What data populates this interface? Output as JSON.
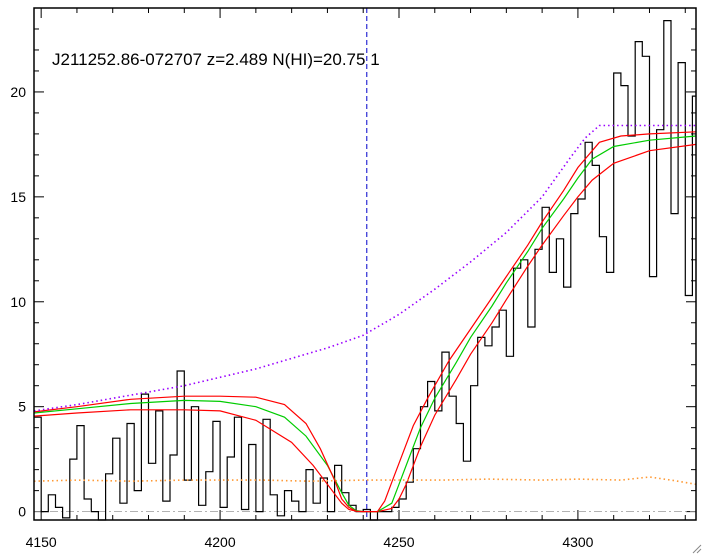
{
  "chart_data": {
    "type": "line",
    "title": "J211252.86-072707 z=2.489 N(HI)=20.75 1",
    "xlabel": "",
    "ylabel": "",
    "xlim": [
      4148,
      4333
    ],
    "ylim": [
      -0.4,
      24
    ],
    "x_ticks": [
      4150,
      4200,
      4250,
      4300
    ],
    "y_ticks": [
      0,
      5,
      10,
      15,
      20
    ],
    "grid": false,
    "legend": "none",
    "line_center": 4241,
    "flux_step": {
      "x": [
        4148,
        4150,
        4152,
        4154,
        4156,
        4158,
        4160,
        4162,
        4164,
        4166,
        4168,
        4170,
        4172,
        4174,
        4176,
        4178,
        4180,
        4182,
        4184,
        4186,
        4188,
        4190,
        4192,
        4194,
        4196,
        4198,
        4200,
        4202,
        4204,
        4206,
        4208,
        4210,
        4212,
        4214,
        4216,
        4218,
        4220,
        4222,
        4224,
        4226,
        4228,
        4230,
        4232,
        4234,
        4236,
        4238,
        4240,
        4242,
        4244,
        4246,
        4248,
        4250,
        4252,
        4254,
        4256,
        4258,
        4260,
        4262,
        4264,
        4266,
        4268,
        4270,
        4272,
        4274,
        4276,
        4278,
        4280,
        4282,
        4284,
        4286,
        4288,
        4290,
        4292,
        4294,
        4296,
        4298,
        4300,
        4302,
        4304,
        4306,
        4308,
        4310,
        4312,
        4314,
        4316,
        4318,
        4320,
        4322,
        4324,
        4326,
        4328,
        4330,
        4332
      ],
      "y": [
        4.5,
        0.0,
        0.8,
        0.2,
        -0.3,
        2.5,
        4.1,
        0.6,
        0.0,
        -0.4,
        1.8,
        3.5,
        0.4,
        4.2,
        1.0,
        5.6,
        2.3,
        4.8,
        0.5,
        2.7,
        6.7,
        1.5,
        5.0,
        0.3,
        1.9,
        4.3,
        0.2,
        2.6,
        4.5,
        0.1,
        3.2,
        0.0,
        4.4,
        0.8,
        -0.2,
        1.0,
        0.5,
        0.0,
        2.0,
        0.4,
        1.6,
        0.0,
        2.2,
        0.9,
        0.3,
        0.0,
        0.1,
        -0.4,
        0.0,
        0.0,
        0.2,
        0.6,
        1.4,
        3.0,
        5.0,
        6.2,
        4.8,
        7.6,
        5.5,
        4.2,
        2.4,
        6.0,
        8.3,
        7.9,
        8.8,
        9.6,
        7.4,
        11.6,
        12.0,
        8.8,
        12.5,
        14.5,
        11.4,
        13.0,
        10.7,
        14.2,
        14.9,
        17.6,
        16.5,
        13.1,
        11.4,
        20.9,
        20.3,
        17.9,
        22.4,
        21.7,
        11.2,
        18.2,
        23.4,
        14.2,
        21.4,
        10.3,
        19.8
      ]
    },
    "series": [
      {
        "name": "",
        "color": "#ff0000",
        "style": "solid",
        "x": [
          4148,
          4160,
          4175,
          4190,
          4200,
          4210,
          4220,
          4226,
          4230,
          4234,
          4236,
          4238,
          4240,
          4244,
          4248,
          4250,
          4252,
          4256,
          4260,
          4266,
          4270,
          4276,
          4280,
          4286,
          4290,
          4296,
          4300,
          4304,
          4310,
          4320,
          4333
        ],
        "y": [
          4.55,
          4.7,
          4.85,
          4.85,
          4.8,
          4.35,
          3.3,
          2.2,
          1.3,
          0.4,
          0.1,
          0.02,
          0.0,
          0.0,
          0.15,
          0.6,
          1.3,
          3.1,
          4.6,
          6.3,
          7.5,
          9.0,
          10.1,
          11.7,
          12.7,
          14.1,
          15.0,
          15.8,
          16.6,
          17.2,
          17.5
        ]
      },
      {
        "name": "",
        "color": "#00cc00",
        "style": "solid",
        "x": [
          4148,
          4160,
          4175,
          4190,
          4200,
          4210,
          4218,
          4224,
          4230,
          4234,
          4236,
          4238,
          4240,
          4244,
          4248,
          4250,
          4252,
          4256,
          4260,
          4266,
          4270,
          4276,
          4280,
          4286,
          4290,
          4296,
          4300,
          4304,
          4310,
          4320,
          4333
        ],
        "y": [
          4.7,
          4.9,
          5.15,
          5.3,
          5.25,
          5.0,
          4.5,
          3.6,
          2.2,
          0.9,
          0.3,
          0.05,
          0.0,
          0.0,
          0.4,
          1.3,
          2.2,
          4.0,
          5.4,
          7.1,
          8.3,
          9.8,
          10.9,
          12.4,
          13.5,
          14.9,
          15.9,
          16.8,
          17.4,
          17.7,
          17.9
        ]
      },
      {
        "name": "",
        "color": "#ff0000",
        "style": "solid",
        "x": [
          4148,
          4160,
          4175,
          4190,
          4200,
          4210,
          4218,
          4224,
          4228,
          4232,
          4234,
          4236,
          4238,
          4240,
          4244,
          4246,
          4248,
          4250,
          4254,
          4258,
          4264,
          4270,
          4276,
          4280,
          4286,
          4290,
          4296,
          4300,
          4306,
          4312,
          4320,
          4333
        ],
        "y": [
          4.75,
          5.0,
          5.35,
          5.5,
          5.5,
          5.45,
          5.1,
          4.2,
          3.0,
          1.5,
          0.6,
          0.2,
          0.02,
          0.0,
          0.0,
          0.5,
          1.4,
          2.3,
          4.1,
          5.4,
          7.2,
          8.7,
          10.2,
          11.2,
          12.7,
          13.8,
          15.3,
          16.4,
          17.6,
          17.9,
          18.0,
          18.1
        ]
      },
      {
        "name": "",
        "color": "#9900ff",
        "style": "dotted",
        "x": [
          4148,
          4160,
          4170,
          4180,
          4190,
          4200,
          4210,
          4220,
          4230,
          4240,
          4250,
          4260,
          4270,
          4280,
          4290,
          4298,
          4302,
          4306,
          4310,
          4320,
          4333
        ],
        "y": [
          4.8,
          5.1,
          5.4,
          5.7,
          6.0,
          6.4,
          6.8,
          7.3,
          7.8,
          8.4,
          9.4,
          10.6,
          11.9,
          13.3,
          15.0,
          16.9,
          17.8,
          18.4,
          18.4,
          18.4,
          18.4
        ]
      },
      {
        "name": "",
        "color": "#ff9933",
        "style": "dotted",
        "x": [
          4148,
          4160,
          4175,
          4190,
          4200,
          4212,
          4225,
          4240,
          4250,
          4262,
          4275,
          4290,
          4300,
          4312,
          4320,
          4326,
          4333
        ],
        "y": [
          1.45,
          1.5,
          1.45,
          1.5,
          1.5,
          1.5,
          1.45,
          1.5,
          1.5,
          1.5,
          1.55,
          1.5,
          1.55,
          1.5,
          1.65,
          1.5,
          1.3
        ]
      },
      {
        "name": "",
        "color": "#999999",
        "style": "dash-dot",
        "x": [
          4148,
          4333
        ],
        "y": [
          0.0,
          0.0
        ]
      }
    ]
  },
  "icons": {
    "resize_grip": "resize-grip-icon"
  }
}
